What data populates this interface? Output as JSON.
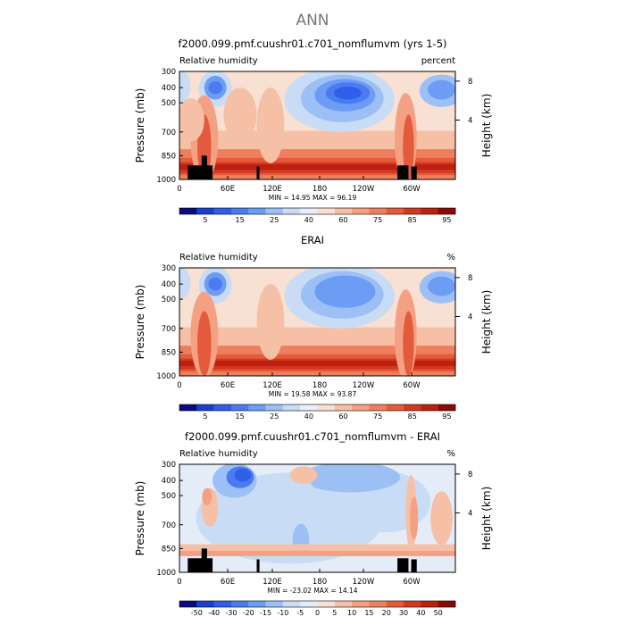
{
  "figure": {
    "title": "ANN"
  },
  "colors": {
    "abs_scale": [
      "#0a0c7e",
      "#1a3fcf",
      "#2f5ee8",
      "#4a7bf0",
      "#6d9cf4",
      "#9cc0f6",
      "#c8dcf6",
      "#e9eef8",
      "#f8e0d2",
      "#f6c0a6",
      "#f4a183",
      "#ee7f5e",
      "#e35b3a",
      "#d2391f",
      "#bd2010",
      "#8a0a06"
    ],
    "diff_scale": [
      "#0a0c7e",
      "#1a3fcf",
      "#2f5ee8",
      "#4a7bf0",
      "#6d9cf4",
      "#9cc0f6",
      "#c8dcf6",
      "#e4ecf8",
      "#f8e0d2",
      "#f6c0a6",
      "#f4a183",
      "#ee7f5e",
      "#e35b3a",
      "#d2391f",
      "#bd2010",
      "#8a0a06"
    ],
    "terrain": "#000000"
  },
  "chart_data": [
    {
      "type": "heatmap",
      "title": "f2000.099.pmf.cuushr01.c701_nomflumvm (yrs 1-5)",
      "left_label": "Relative humidity",
      "right_label": "percent",
      "ylabel": "Pressure (mb)",
      "y2label": "Height (km)",
      "x_ticks": [
        "0",
        "60E",
        "120E",
        "180",
        "120W",
        "60W"
      ],
      "y_ticks": [
        "300",
        "400",
        "500",
        "700",
        "850",
        "1000"
      ],
      "y2_ticks": [
        "8",
        "4"
      ],
      "stats": {
        "min_label": "MIN =",
        "min": "14.95",
        "max_label": "MAX =",
        "max": "96.19"
      },
      "colorbar_labels": [
        "5",
        "15",
        "25",
        "40",
        "60",
        "75",
        "85",
        "95"
      ],
      "scale": "abs",
      "variant": "model"
    },
    {
      "type": "heatmap",
      "title": "ERAI",
      "left_label": "Relative humidity",
      "right_label": "%",
      "ylabel": "Pressure (mb)",
      "y2label": "Height (km)",
      "x_ticks": [
        "0",
        "60E",
        "120E",
        "180",
        "120W",
        "60W"
      ],
      "y_ticks": [
        "300",
        "400",
        "500",
        "700",
        "850",
        "1000"
      ],
      "y2_ticks": [
        "8",
        "4"
      ],
      "stats": {
        "min_label": "MIN =",
        "min": "19.58",
        "max_label": "MAX =",
        "max": "93.87"
      },
      "colorbar_labels": [
        "5",
        "15",
        "25",
        "40",
        "60",
        "75",
        "85",
        "95"
      ],
      "scale": "abs",
      "variant": "obs"
    },
    {
      "type": "heatmap",
      "title": "f2000.099.pmf.cuushr01.c701_nomflumvm - ERAI",
      "left_label": "Relative humidity",
      "right_label": "%",
      "ylabel": "Pressure (mb)",
      "y2label": "Height (km)",
      "x_ticks": [
        "0",
        "60E",
        "120E",
        "180",
        "120W",
        "60W"
      ],
      "y_ticks": [
        "300",
        "400",
        "500",
        "700",
        "850",
        "1000"
      ],
      "y2_ticks": [
        "8",
        "4"
      ],
      "stats": {
        "min_label": "MIN =",
        "min": "-23.02",
        "max_label": "MAX =",
        "max": "14.14"
      },
      "colorbar_labels": [
        "-50",
        "-40",
        "-30",
        "-20",
        "-15",
        "-10",
        "-5",
        "0",
        "5",
        "10",
        "15",
        "20",
        "30",
        "40",
        "50"
      ],
      "scale": "diff",
      "variant": "diff"
    }
  ]
}
